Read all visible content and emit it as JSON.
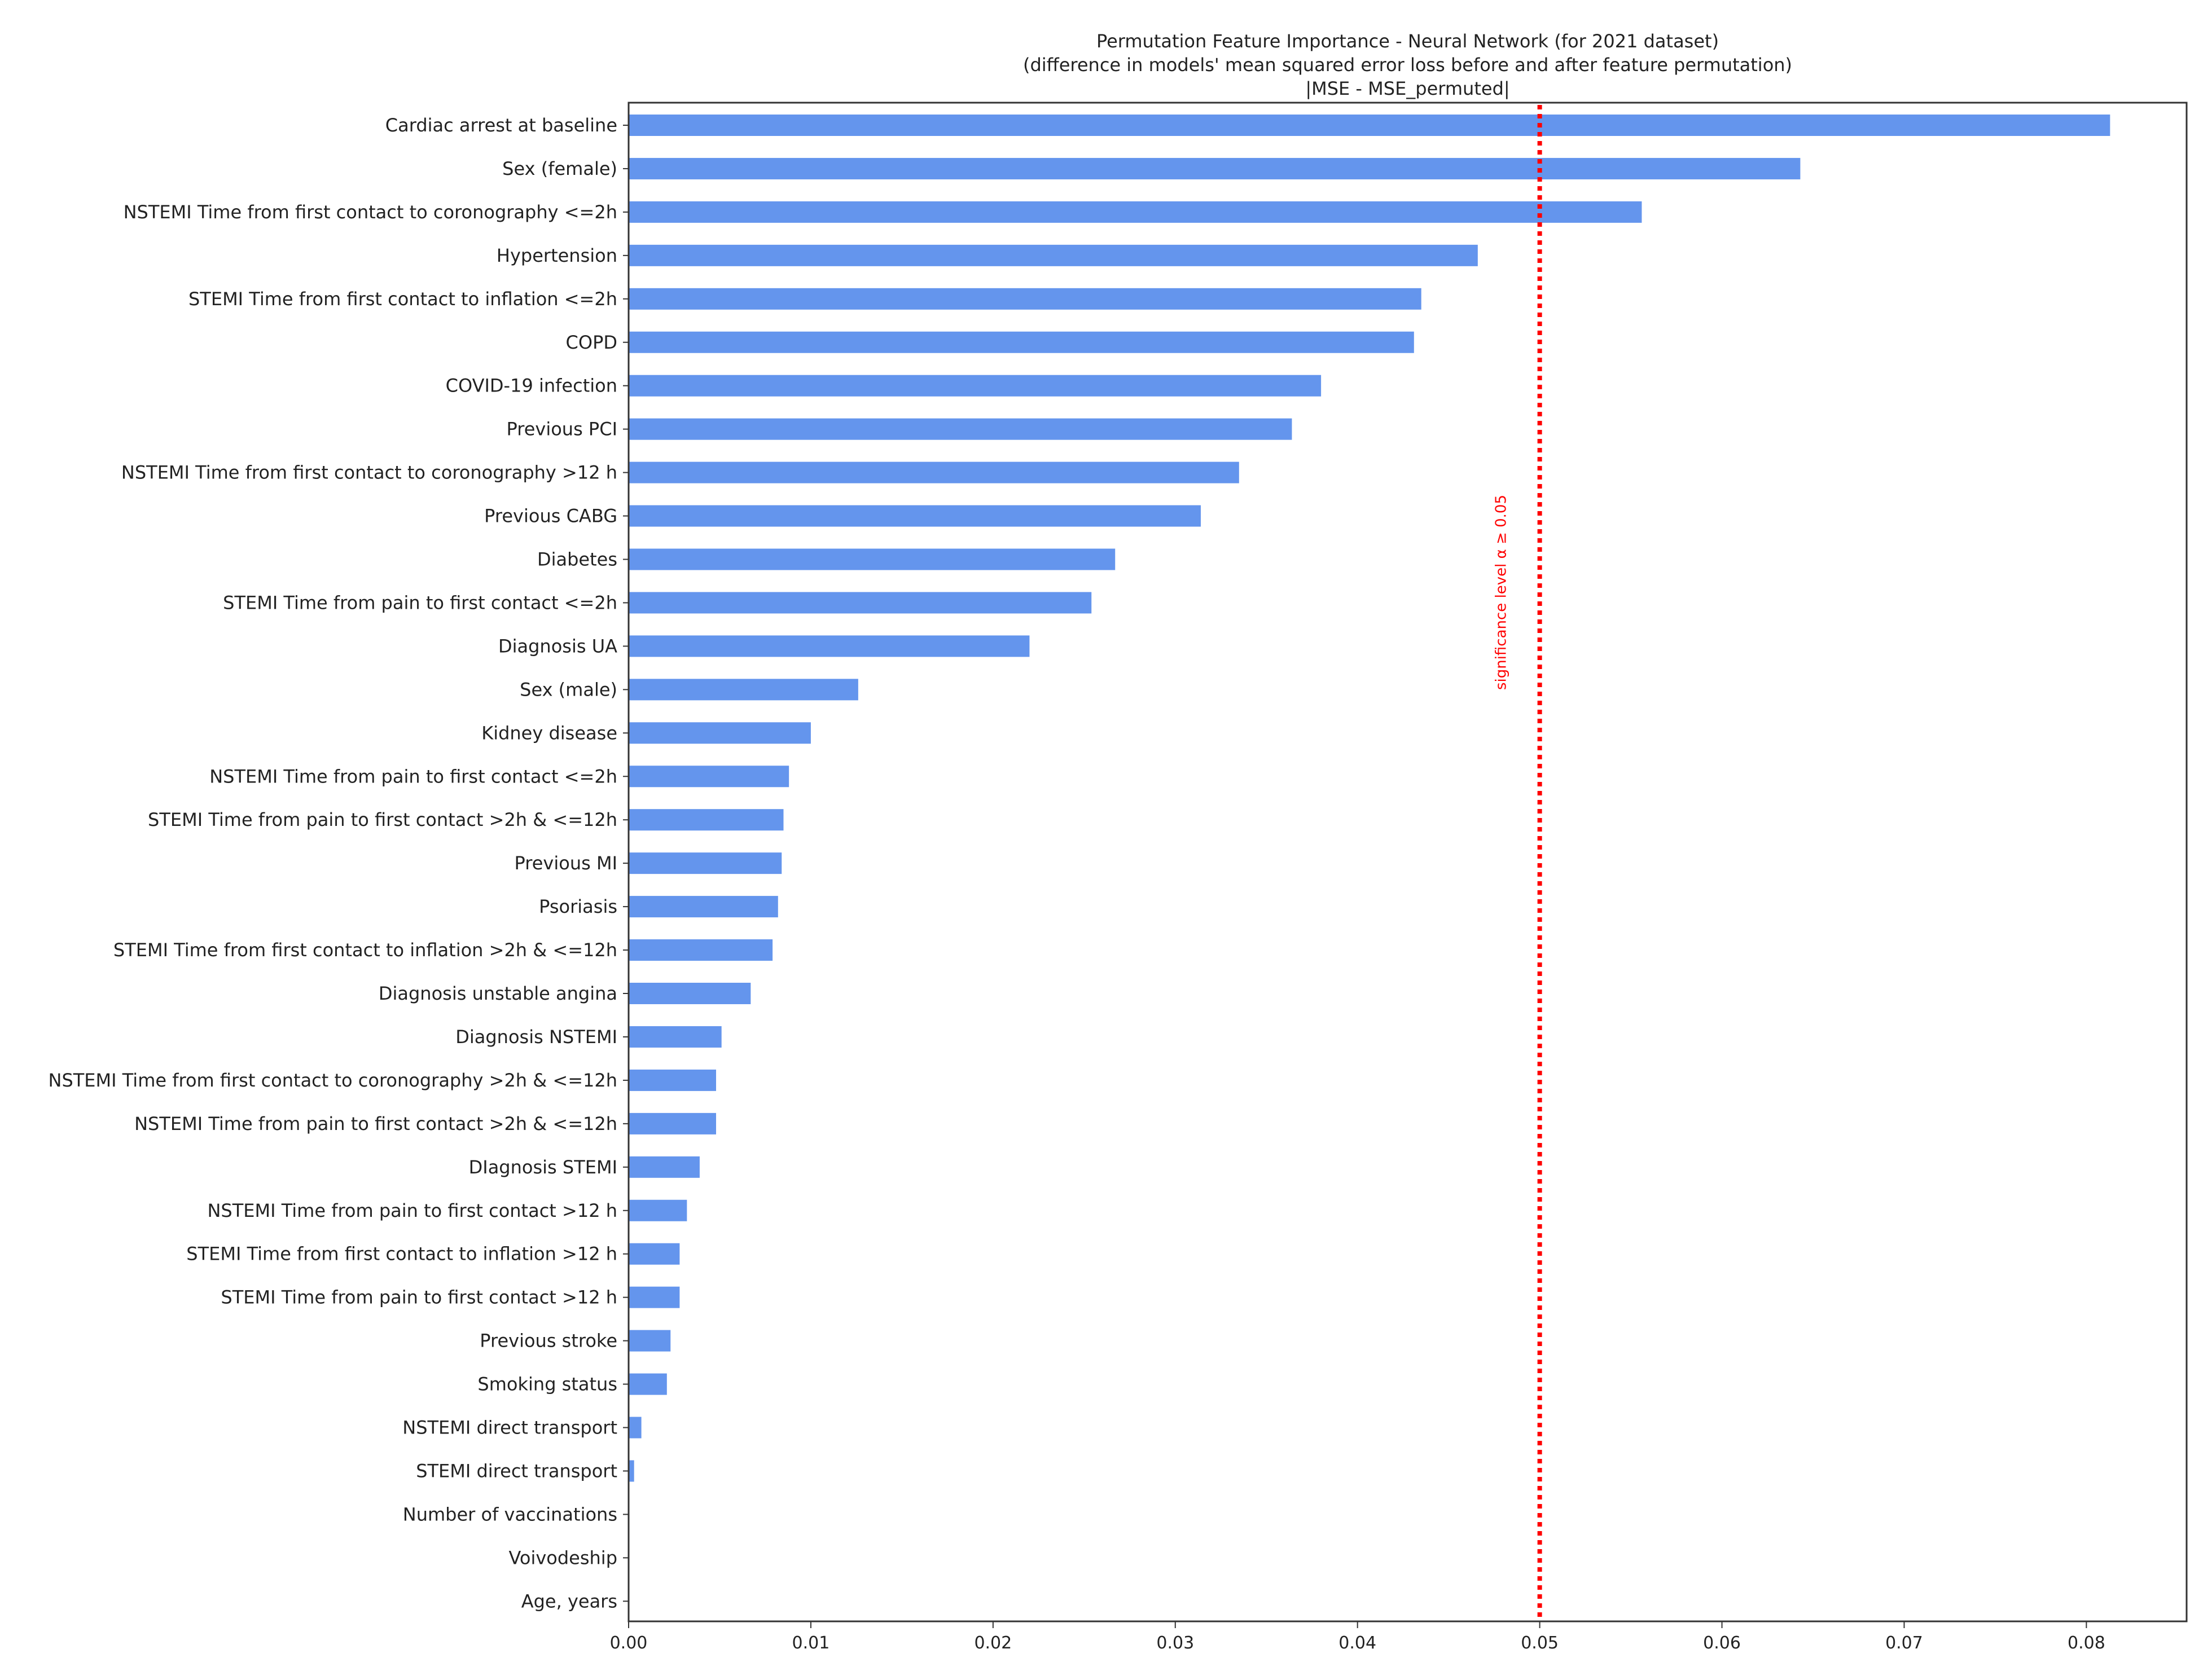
{
  "chart_data": {
    "type": "bar",
    "orientation": "horizontal",
    "title_lines": [
      "Permutation Feature Importance - Neural Network (for 2021 dataset)",
      "(difference in models' mean squared error loss before and after feature permutation)",
      "|MSE - MSE_permuted|"
    ],
    "xlabel": "",
    "ylabel": "",
    "xlim": [
      0,
      0.0855
    ],
    "xticks": [
      0.0,
      0.01,
      0.02,
      0.03,
      0.04,
      0.05,
      0.06,
      0.07,
      0.08
    ],
    "xtick_labels": [
      "0.00",
      "0.01",
      "0.02",
      "0.03",
      "0.04",
      "0.05",
      "0.06",
      "0.07",
      "0.08"
    ],
    "grid": false,
    "bar_color": "#6495ed",
    "categories": [
      "Cardiac arrest at baseline",
      "Sex (female)",
      "NSTEMI Time from first contact to coronography <=2h",
      "Hypertension",
      "STEMI Time from first contact to inflation <=2h",
      "COPD",
      "COVID-19 infection",
      "Previous PCI",
      "NSTEMI Time from first contact to coronography >12 h",
      "Previous CABG",
      "Diabetes",
      "STEMI Time from pain to first contact <=2h",
      "Diagnosis UA",
      "Sex (male)",
      "Kidney disease",
      "NSTEMI Time from pain to first contact <=2h",
      "STEMI Time from pain to first contact >2h & <=12h",
      "Previous MI",
      "Psoriasis",
      "STEMI Time from first contact to inflation >2h & <=12h",
      "Diagnosis unstable angina",
      "Diagnosis NSTEMI",
      "NSTEMI Time from first contact to coronography >2h & <=12h",
      "NSTEMI Time from pain to first contact >2h & <=12h",
      "DIagnosis STEMI",
      "NSTEMI Time from pain to first contact >12 h",
      "STEMI Time from first contact to inflation >12 h",
      "STEMI Time from pain to first contact >12 h",
      "Previous stroke",
      "Smoking status",
      "NSTEMI direct transport",
      "STEMI direct transport",
      "Number of vaccinations",
      "Voivodeship",
      "Age, years"
    ],
    "values": [
      0.0813,
      0.0643,
      0.0556,
      0.0466,
      0.0435,
      0.0431,
      0.038,
      0.0364,
      0.0335,
      0.0314,
      0.0267,
      0.0254,
      0.022,
      0.0126,
      0.01,
      0.0088,
      0.0085,
      0.0084,
      0.0082,
      0.0079,
      0.0067,
      0.0051,
      0.0048,
      0.0048,
      0.0039,
      0.0032,
      0.0028,
      0.0028,
      0.0023,
      0.0021,
      0.0007,
      0.0003,
      0.0,
      0.0,
      0.0
    ],
    "threshold": {
      "value": 0.05,
      "label": "significance level α ≥ 0.05",
      "color": "#ff0000",
      "style": "dotted"
    }
  }
}
